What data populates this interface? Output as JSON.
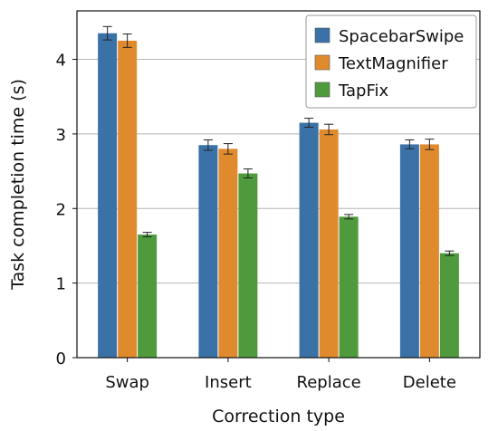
{
  "chart_data": {
    "type": "bar",
    "title": "",
    "xlabel": "Correction type",
    "ylabel": "Task completion time (s)",
    "ylim": [
      0,
      4.65
    ],
    "yticks": [
      0,
      1,
      2,
      3,
      4
    ],
    "grid": "horizontal",
    "legend_position": "top-right",
    "categories": [
      "Swap",
      "Insert",
      "Replace",
      "Delete"
    ],
    "series": [
      {
        "name": "SpacebarSwipe",
        "color": "#3a72a8",
        "values": [
          4.35,
          2.85,
          3.15,
          2.86
        ],
        "errors": [
          0.09,
          0.07,
          0.06,
          0.06
        ]
      },
      {
        "name": "TextMagnifier",
        "color": "#e08a2e",
        "values": [
          4.25,
          2.8,
          3.06,
          2.86
        ],
        "errors": [
          0.09,
          0.07,
          0.07,
          0.07
        ]
      },
      {
        "name": "TapFix",
        "color": "#4e9a3c",
        "values": [
          1.65,
          2.47,
          1.89,
          1.4
        ],
        "errors": [
          0.03,
          0.06,
          0.03,
          0.03
        ]
      }
    ]
  }
}
